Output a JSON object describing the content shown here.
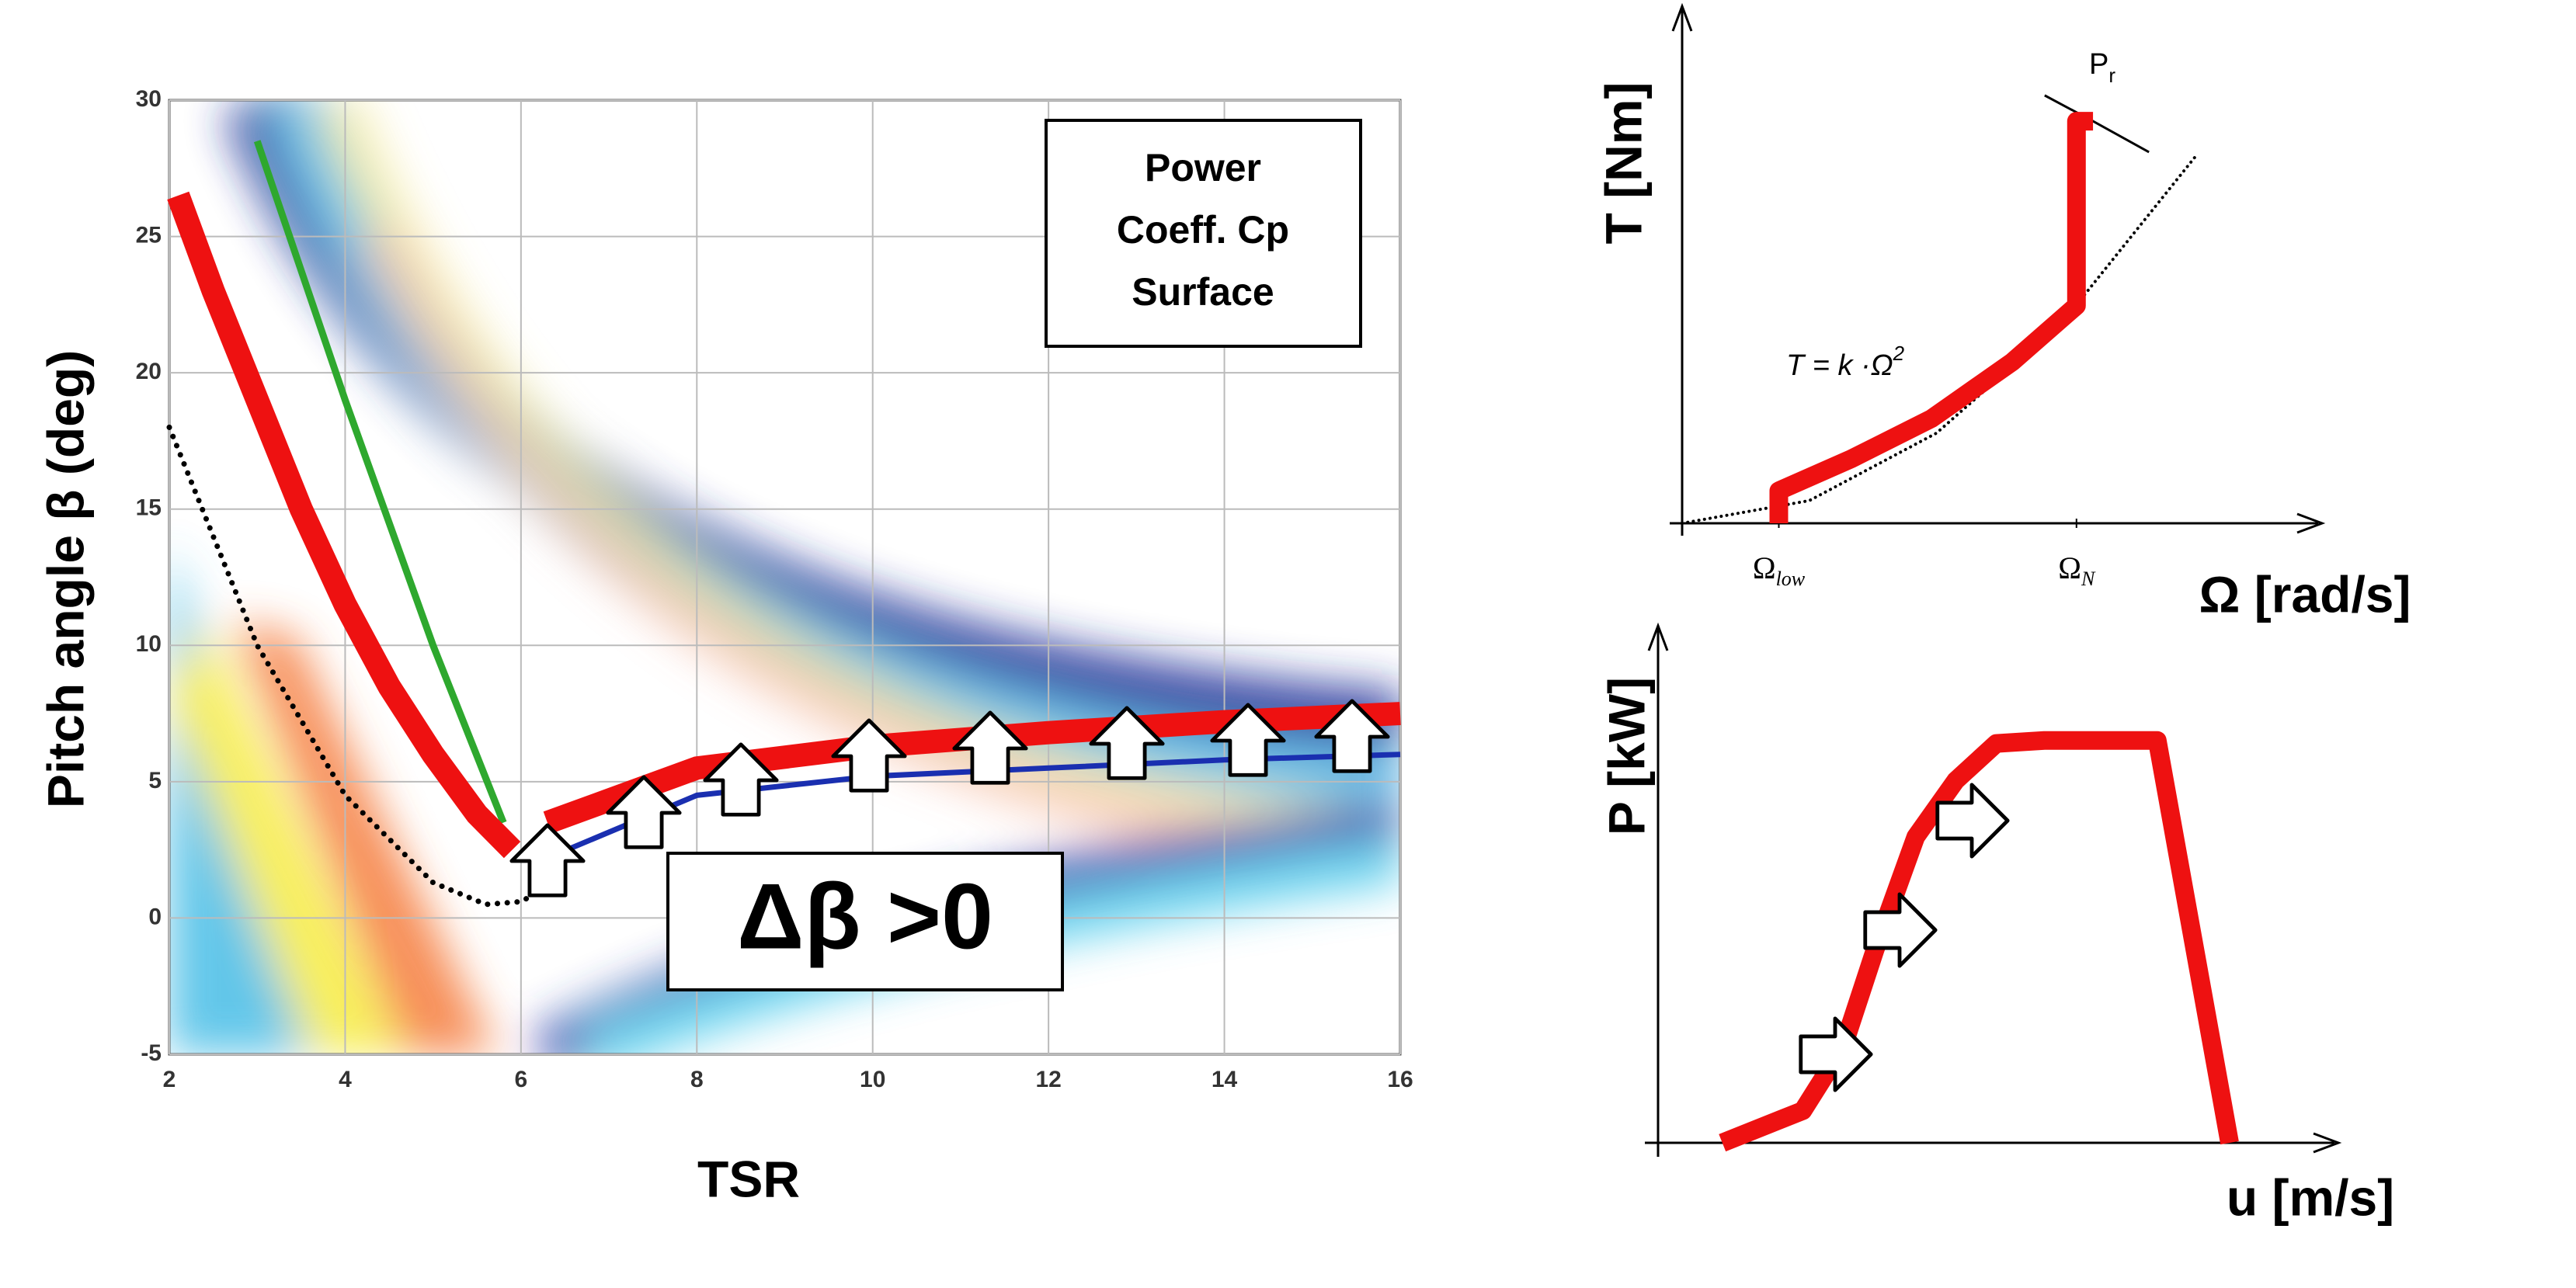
{
  "chart_data": [
    {
      "type": "line",
      "xlabel": "TSR",
      "ylabel": "Pitch angle β (deg)",
      "xlim": [
        2,
        16
      ],
      "ylim": [
        -5,
        30
      ],
      "xticks": [
        2,
        4,
        6,
        8,
        10,
        12,
        14,
        16
      ],
      "yticks": [
        -5,
        0,
        5,
        10,
        15,
        20,
        25,
        30
      ],
      "grid": true,
      "annotations": [
        "Power",
        "Coeff. Cp",
        "Surface",
        "Δβ >0"
      ],
      "series": [
        {
          "color": "#000000",
          "style": "dotted",
          "x": [
            2,
            3,
            4,
            5,
            5.6,
            6,
            6.5
          ],
          "values": [
            18,
            10,
            4.5,
            1.3,
            0.5,
            0.6,
            1.5
          ]
        },
        {
          "color": "#1a2fb0",
          "style": "solid",
          "x": [
            6.3,
            8,
            10,
            12,
            14,
            16
          ],
          "values": [
            2.2,
            4.5,
            5.2,
            5.5,
            5.8,
            6
          ]
        },
        {
          "color": "#2ea82e",
          "style": "solid",
          "x": [
            3,
            4,
            5,
            5.8
          ],
          "values": [
            28.5,
            19,
            10,
            3.5
          ]
        },
        {
          "color": "#ee1111",
          "style": "solid",
          "x": [
            2.1,
            2.5,
            3,
            3.5,
            4,
            4.5,
            5,
            5.5,
            5.9
          ],
          "values": [
            26.5,
            23,
            19,
            15,
            11.5,
            8.5,
            6,
            3.8,
            2.5
          ]
        },
        {
          "color": "#ee1111",
          "style": "solid",
          "x": [
            6.3,
            8,
            10,
            12,
            14,
            16
          ],
          "values": [
            3.5,
            5.5,
            6.3,
            6.8,
            7.2,
            7.5
          ]
        }
      ]
    },
    {
      "type": "line",
      "xlabel": "Ω [rad/s]",
      "ylabel": "T [Nm]",
      "xlim": [
        0,
        100
      ],
      "ylim": [
        0,
        100
      ],
      "xticks": [
        {
          "value": 15.2,
          "label": "Ω",
          "sub": "low"
        },
        {
          "value": 62,
          "label": "Ω",
          "sub": "N"
        }
      ],
      "annotations": [
        {
          "text": "P",
          "sub": "r"
        },
        {
          "text": "T = k ·Ω",
          "sup": "2"
        }
      ],
      "series": [
        {
          "color": "#000000",
          "style": "dotted",
          "x": [
            0,
            20,
            40,
            60,
            81
          ],
          "values": [
            0,
            4.4,
            17.5,
            39.3,
            71.6
          ]
        },
        {
          "color": "#000000",
          "style": "solid",
          "x": [
            57,
            64.6,
            73.4
          ],
          "values": [
            83,
            78,
            72
          ]
        },
        {
          "color": "#ee1111",
          "style": "solid",
          "x": [
            15.2,
            15.2,
            26.6,
            39.2,
            51.9,
            62,
            62,
            64.6
          ],
          "values": [
            0,
            6.3,
            12.5,
            20.3,
            31.3,
            42.2,
            78,
            78
          ]
        }
      ]
    },
    {
      "type": "line",
      "xlabel": "u [m/s]",
      "ylabel": "P [kW]",
      "xlim": [
        0,
        100
      ],
      "ylim": [
        0,
        100
      ],
      "series": [
        {
          "color": "#ee1111",
          "style": "solid",
          "x": [
            9.5,
            21.4,
            27.4,
            32.1,
            38.1,
            44,
            50,
            57.1,
            73.8,
            84.5
          ],
          "values": [
            0,
            6.4,
            19.2,
            38.5,
            60.9,
            72.1,
            79.5,
            80.1,
            80.1,
            0
          ]
        }
      ]
    }
  ]
}
